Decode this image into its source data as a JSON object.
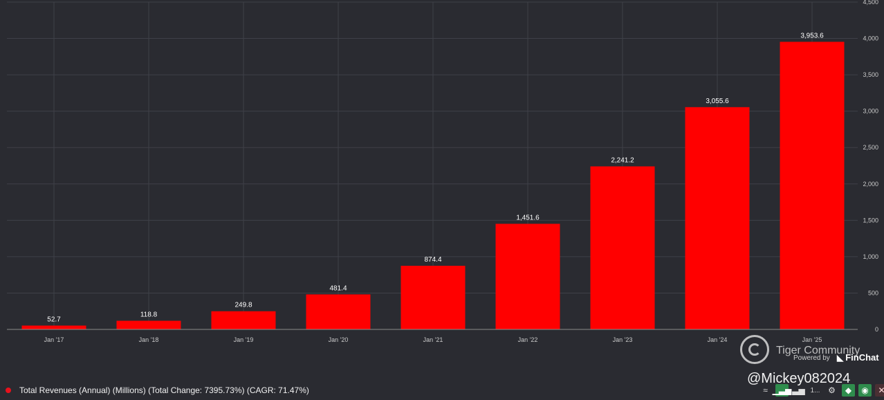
{
  "chart_data": {
    "type": "bar",
    "categories": [
      "Jan '17",
      "Jan '18",
      "Jan '19",
      "Jan '20",
      "Jan '21",
      "Jan '22",
      "Jan '23",
      "Jan '24",
      "Jan '25"
    ],
    "values": [
      52.7,
      118.8,
      249.8,
      481.4,
      874.4,
      1451.6,
      2241.2,
      3055.6,
      3953.6
    ],
    "data_labels": [
      "52.7",
      "118.8",
      "249.8",
      "481.4",
      "874.4",
      "1,451.6",
      "2,241.2",
      "3,055.6",
      "3,953.6"
    ],
    "y_ticks": [
      0,
      500,
      1000,
      1500,
      2000,
      2500,
      3000,
      3500,
      4000,
      4500
    ],
    "y_tick_labels": [
      "0",
      "500",
      "1,000",
      "1,500",
      "2,000",
      "2,500",
      "3,000",
      "3,500",
      "4,000",
      "4,500"
    ],
    "ylim": [
      0,
      4500
    ],
    "grid": true,
    "bar_color": "#ff0000",
    "background": "#2a2b31",
    "grid_color": "#3f4048"
  },
  "legend": {
    "label": "Total Revenues (Annual) (Millions) (Total Change: 7395.73%) (CAGR: 71.47%)",
    "color": "#e8111c",
    "placement": "bottom-left"
  },
  "watermark": {
    "community": "Tiger Community",
    "powered_by": "Powered by",
    "brand": "FinChat",
    "handle": "@Mickey082024"
  },
  "toolbar": {
    "truncated_label": "1..."
  }
}
